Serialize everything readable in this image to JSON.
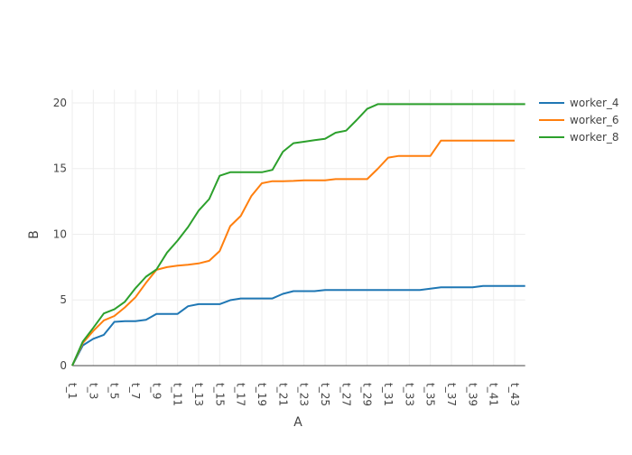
{
  "chart_data": {
    "type": "line",
    "title": "",
    "xlabel": "A",
    "ylabel": "B",
    "ylim": [
      0,
      21
    ],
    "yticks": [
      0,
      5,
      10,
      15,
      20
    ],
    "grid": true,
    "legend_position": "top-right",
    "categories": [
      "t_1",
      "t_2",
      "t_3",
      "t_4",
      "t_5",
      "t_6",
      "t_7",
      "t_8",
      "t_9",
      "t_10",
      "t_11",
      "t_12",
      "t_13",
      "t_14",
      "t_15",
      "t_16",
      "t_17",
      "t_18",
      "t_19",
      "t_20",
      "t_21",
      "t_22",
      "t_23",
      "t_24",
      "t_25",
      "t_26",
      "t_27",
      "t_28",
      "t_29",
      "t_30",
      "t_31",
      "t_32",
      "t_33",
      "t_34",
      "t_35",
      "t_36",
      "t_37",
      "t_38",
      "t_39",
      "t_40",
      "t_41",
      "t_42",
      "t_43",
      "t_44"
    ],
    "xtick_labels": [
      "t_1",
      "t_3",
      "t_5",
      "t_7",
      "t_9",
      "t_11",
      "t_13",
      "t_15",
      "t_17",
      "t_19",
      "t_21",
      "t_23",
      "t_25",
      "t_27",
      "t_29",
      "t_31",
      "t_33",
      "t_35",
      "t_37",
      "t_39",
      "t_41",
      "t_43"
    ],
    "series": [
      {
        "name": "worker_4",
        "color": "#1f77b4",
        "values": [
          0,
          1.54,
          2.04,
          2.34,
          3.33,
          3.39,
          3.39,
          3.49,
          3.94,
          3.94,
          3.94,
          4.52,
          4.68,
          4.68,
          4.68,
          4.98,
          5.11,
          5.11,
          5.11,
          5.11,
          5.46,
          5.67,
          5.67,
          5.67,
          5.76,
          5.76,
          5.76,
          5.76,
          5.76,
          5.76,
          5.76,
          5.76,
          5.76,
          5.76,
          5.86,
          5.96,
          5.96,
          5.96,
          5.96,
          6.06,
          6.06,
          6.06,
          6.06,
          6.06
        ]
      },
      {
        "name": "worker_6",
        "color": "#ff7f0e",
        "values": [
          0,
          1.72,
          2.64,
          3.44,
          3.78,
          4.43,
          5.2,
          6.3,
          7.29,
          7.5,
          7.61,
          7.68,
          7.78,
          7.98,
          8.72,
          10.62,
          11.4,
          12.9,
          13.88,
          14.04,
          14.04,
          14.06,
          14.1,
          14.1,
          14.1,
          14.2,
          14.2,
          14.2,
          14.2,
          14.98,
          15.83,
          15.96,
          15.96,
          15.96,
          15.96,
          17.13,
          17.13,
          17.13,
          17.13,
          17.13,
          17.13,
          17.13,
          17.13,
          null
        ]
      },
      {
        "name": "worker_8",
        "color": "#2ca02c",
        "values": [
          0,
          1.83,
          2.87,
          3.97,
          4.29,
          4.86,
          5.89,
          6.77,
          7.32,
          8.6,
          9.52,
          10.55,
          11.8,
          12.68,
          14.45,
          14.72,
          14.72,
          14.72,
          14.72,
          14.9,
          16.28,
          16.93,
          17.04,
          17.16,
          17.27,
          17.73,
          17.89,
          18.69,
          19.54,
          19.9,
          19.9,
          19.9,
          19.9,
          19.9,
          19.9,
          19.9,
          19.9,
          19.9,
          19.9,
          19.9,
          19.9,
          19.9,
          19.9,
          19.9
        ]
      }
    ]
  }
}
